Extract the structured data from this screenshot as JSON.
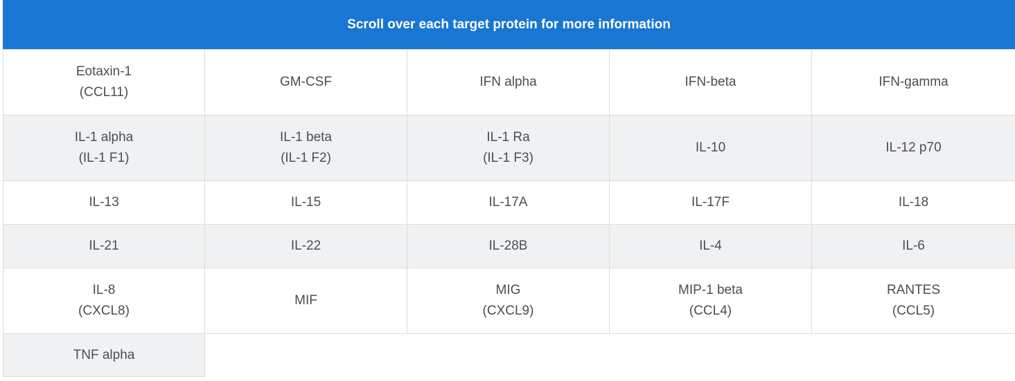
{
  "header": {
    "title": "Scroll over each target protein for more information"
  },
  "rows": [
    [
      {
        "line1": "Eotaxin-1",
        "line2": "(CCL11)"
      },
      {
        "line1": "GM-CSF",
        "line2": ""
      },
      {
        "line1": "IFN alpha",
        "line2": ""
      },
      {
        "line1": "IFN-beta",
        "line2": ""
      },
      {
        "line1": "IFN-gamma",
        "line2": ""
      }
    ],
    [
      {
        "line1": "IL-1 alpha",
        "line2": "(IL-1 F1)"
      },
      {
        "line1": "IL-1 beta",
        "line2": "(IL-1 F2)"
      },
      {
        "line1": "IL-1 Ra",
        "line2": "(IL-1 F3)"
      },
      {
        "line1": "IL-10",
        "line2": ""
      },
      {
        "line1": "IL-12 p70",
        "line2": ""
      }
    ],
    [
      {
        "line1": "IL-13",
        "line2": ""
      },
      {
        "line1": "IL-15",
        "line2": ""
      },
      {
        "line1": "IL-17A",
        "line2": ""
      },
      {
        "line1": "IL-17F",
        "line2": ""
      },
      {
        "line1": "IL-18",
        "line2": ""
      }
    ],
    [
      {
        "line1": "IL-21",
        "line2": ""
      },
      {
        "line1": "IL-22",
        "line2": ""
      },
      {
        "line1": "IL-28B",
        "line2": ""
      },
      {
        "line1": "IL-4",
        "line2": ""
      },
      {
        "line1": "IL-6",
        "line2": ""
      }
    ],
    [
      {
        "line1": "IL-8",
        "line2": "(CXCL8)"
      },
      {
        "line1": "MIF",
        "line2": ""
      },
      {
        "line1": "MIG",
        "line2": "(CXCL9)"
      },
      {
        "line1": "MIP-1 beta",
        "line2": "(CCL4)"
      },
      {
        "line1": "RANTES",
        "line2": "(CCL5)"
      }
    ],
    [
      {
        "line1": "TNF alpha",
        "line2": ""
      }
    ]
  ],
  "colors": {
    "header_bg": "#1976d2",
    "header_text": "#ffffff",
    "shaded_row": "#f0f1f3",
    "cell_text": "#4a4d52",
    "border": "#dcdcdc"
  }
}
